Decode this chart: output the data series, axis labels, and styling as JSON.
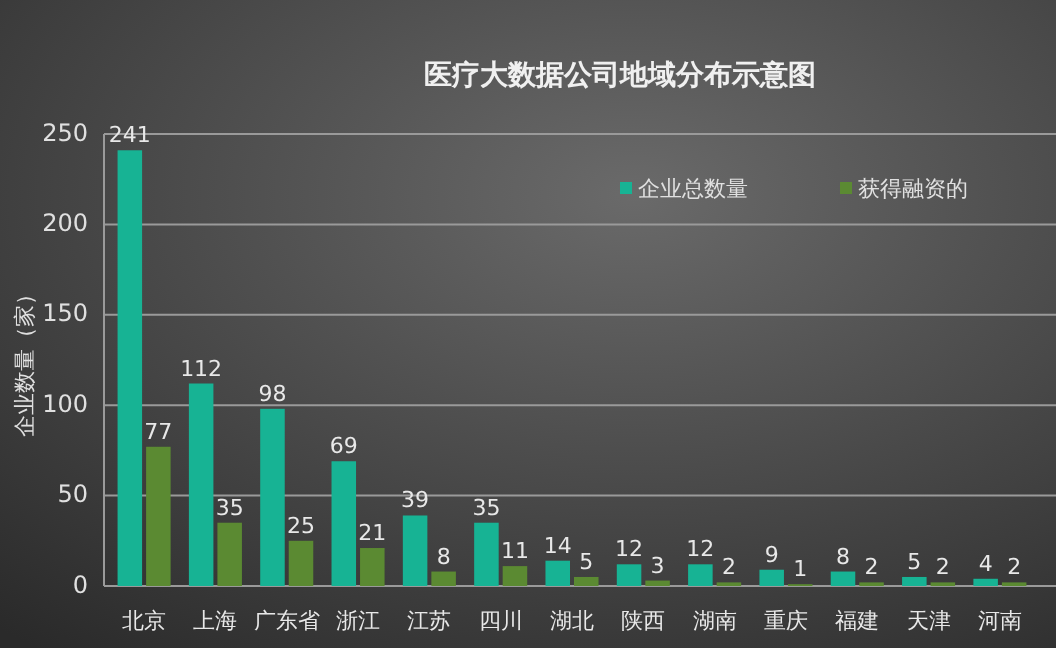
{
  "chart_data": {
    "type": "bar",
    "title": "医疗大数据公司地域分布示意图",
    "ylabel": "企业数量（家）",
    "categories": [
      "北京",
      "上海",
      "广东省",
      "浙江",
      "江苏",
      "四川",
      "湖北",
      "陕西",
      "湖南",
      "重庆",
      "福建",
      "天津",
      "河南"
    ],
    "series": [
      {
        "name": "企业总数量",
        "color": "#17b394",
        "values": [
          241,
          112,
          98,
          69,
          39,
          35,
          14,
          12,
          12,
          9,
          8,
          5,
          4
        ]
      },
      {
        "name": "获得融资的",
        "color": "#5b8a32",
        "values": [
          77,
          35,
          25,
          21,
          8,
          11,
          5,
          3,
          2,
          1,
          2,
          2,
          2
        ]
      }
    ],
    "ylim": [
      0,
      250
    ],
    "yticks": [
      0,
      50,
      100,
      150,
      200,
      250
    ],
    "grid": "y",
    "legend": "top right",
    "data_labels": true
  }
}
